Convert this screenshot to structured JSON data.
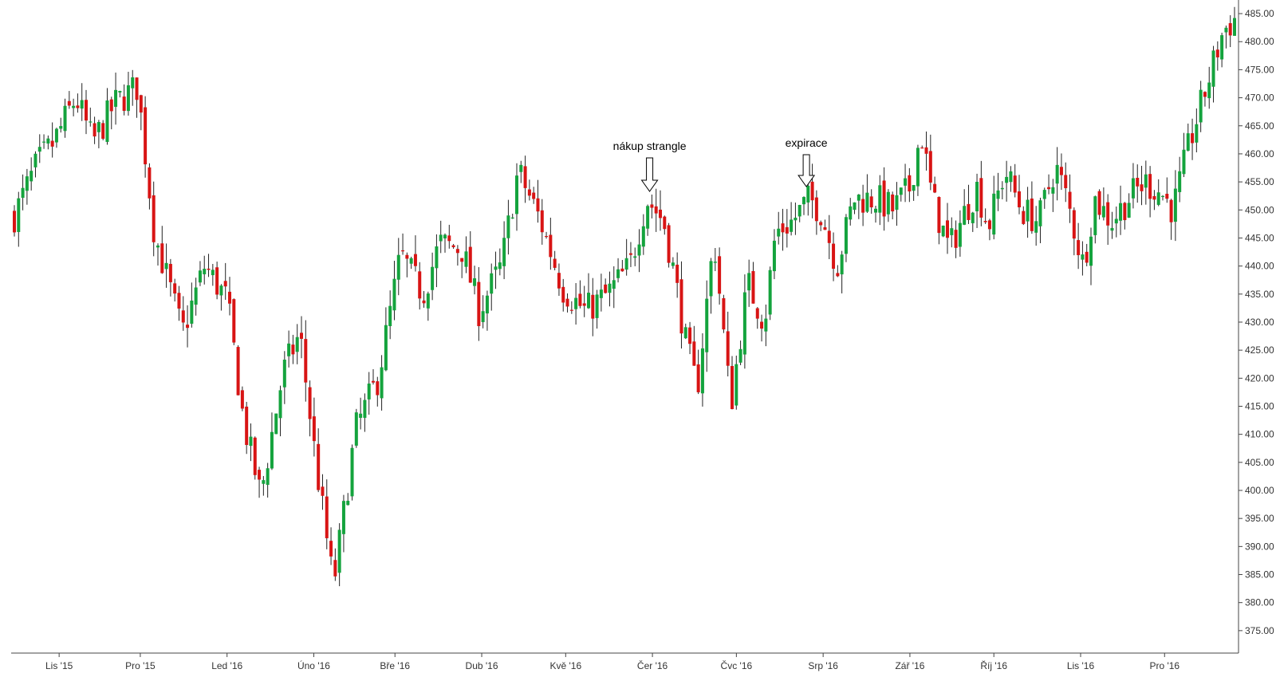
{
  "chart_data": {
    "type": "candlestick",
    "title": "",
    "xlabel": "",
    "ylabel": "",
    "ylim": [
      371,
      487
    ],
    "y_ticks": [
      "375.00",
      "380.00",
      "385.00",
      "390.00",
      "395.00",
      "400.00",
      "405.00",
      "410.00",
      "415.00",
      "420.00",
      "425.00",
      "430.00",
      "435.00",
      "440.00",
      "445.00",
      "450.00",
      "455.00",
      "460.00",
      "465.00",
      "470.00",
      "475.00",
      "480.00",
      "485.00"
    ],
    "x_ticks": [
      {
        "label": "Lis '15",
        "day": 16
      },
      {
        "label": "Pro '15",
        "day": 45
      },
      {
        "label": "Led '16",
        "day": 76
      },
      {
        "label": "Úno '16",
        "day": 107
      },
      {
        "label": "Bře '16",
        "day": 136
      },
      {
        "label": "Dub '16",
        "day": 167
      },
      {
        "label": "Kvě '16",
        "day": 197
      },
      {
        "label": "Čer '16",
        "day": 228
      },
      {
        "label": "Čvc '16",
        "day": 258
      },
      {
        "label": "Srp '16",
        "day": 289
      },
      {
        "label": "Zář '16",
        "day": 320
      },
      {
        "label": "Říj '16",
        "day": 350
      },
      {
        "label": "Lis '16",
        "day": 381
      },
      {
        "label": "Pro '16",
        "day": 411
      }
    ],
    "x_range_days": [
      0,
      436
    ],
    "candle_count": 290,
    "up_color": "#14a33d",
    "down_color": "#d81414",
    "wick_color": "#222222",
    "grid": false,
    "y_axis_side": "right",
    "legend": "none",
    "anchors": [
      [
        0,
        449
      ],
      [
        8,
        458
      ],
      [
        14,
        462
      ],
      [
        22,
        470
      ],
      [
        28,
        462
      ],
      [
        36,
        469
      ],
      [
        44,
        472
      ],
      [
        50,
        446
      ],
      [
        60,
        428
      ],
      [
        68,
        440
      ],
      [
        76,
        434
      ],
      [
        82,
        412
      ],
      [
        88,
        399
      ],
      [
        96,
        421
      ],
      [
        102,
        428
      ],
      [
        108,
        404
      ],
      [
        114,
        383
      ],
      [
        122,
        411
      ],
      [
        130,
        420
      ],
      [
        138,
        442
      ],
      [
        146,
        435
      ],
      [
        152,
        444
      ],
      [
        160,
        443
      ],
      [
        166,
        432
      ],
      [
        174,
        440
      ],
      [
        180,
        457
      ],
      [
        188,
        448
      ],
      [
        196,
        436
      ],
      [
        204,
        432
      ],
      [
        212,
        435
      ],
      [
        220,
        440
      ],
      [
        226,
        452
      ],
      [
        232,
        448
      ],
      [
        236,
        438
      ],
      [
        240,
        426
      ],
      [
        244,
        418
      ],
      [
        250,
        445
      ],
      [
        256,
        415
      ],
      [
        262,
        437
      ],
      [
        268,
        430
      ],
      [
        272,
        446
      ],
      [
        278,
        448
      ],
      [
        284,
        452
      ],
      [
        288,
        450
      ],
      [
        294,
        440
      ],
      [
        300,
        452
      ],
      [
        308,
        452
      ],
      [
        314,
        450
      ],
      [
        320,
        454
      ],
      [
        324,
        464
      ],
      [
        328,
        452
      ],
      [
        334,
        443
      ],
      [
        340,
        450
      ],
      [
        344,
        454
      ],
      [
        348,
        447
      ],
      [
        354,
        457
      ],
      [
        360,
        450
      ],
      [
        366,
        448
      ],
      [
        372,
        458
      ],
      [
        376,
        452
      ],
      [
        382,
        440
      ],
      [
        386,
        452
      ],
      [
        392,
        448
      ],
      [
        398,
        452
      ],
      [
        404,
        455
      ],
      [
        410,
        453
      ],
      [
        414,
        450
      ],
      [
        420,
        462
      ],
      [
        426,
        472
      ],
      [
        432,
        482
      ],
      [
        436,
        484
      ]
    ],
    "annotations": [
      {
        "text": "nákup strangle",
        "day": 227
      },
      {
        "text": "expirace",
        "day": 283
      }
    ]
  }
}
